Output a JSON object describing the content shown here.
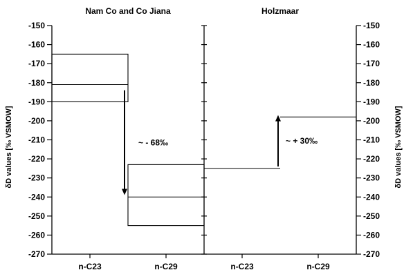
{
  "chart_data": [
    {
      "type": "box",
      "title": "Nam Co and Co Jiana",
      "categories": [
        "n-C23",
        "n-C29"
      ],
      "ylabel": "δD values [‰ VSMOW]",
      "ylim": [
        -270,
        -150
      ],
      "yticks": [
        -150,
        -160,
        -170,
        -180,
        -190,
        -200,
        -210,
        -220,
        -230,
        -240,
        -250,
        -260,
        -270
      ],
      "boxes": [
        {
          "category": "n-C23",
          "low": -190,
          "median": -181,
          "high": -165
        },
        {
          "category": "n-C29",
          "low": -255,
          "median": -240,
          "high": -223
        }
      ],
      "annotation": {
        "text": "~ - 68‰",
        "from": -184,
        "to": -239
      }
    },
    {
      "type": "box",
      "title": "Holzmaar",
      "categories": [
        "n-C23",
        "n-C29"
      ],
      "ylabel": "δD values [‰ VSMOW]",
      "ylim": [
        -270,
        -150
      ],
      "yticks": [
        -150,
        -160,
        -170,
        -180,
        -190,
        -200,
        -210,
        -220,
        -230,
        -240,
        -250,
        -260,
        -270
      ],
      "boxes": [
        {
          "category": "n-C23",
          "low": -225,
          "median": -225,
          "high": -225
        },
        {
          "category": "n-C29",
          "low": -198,
          "median": -198,
          "high": -198
        }
      ],
      "annotation": {
        "text": "~ + 30‰",
        "from": -224,
        "to": -197
      }
    }
  ]
}
